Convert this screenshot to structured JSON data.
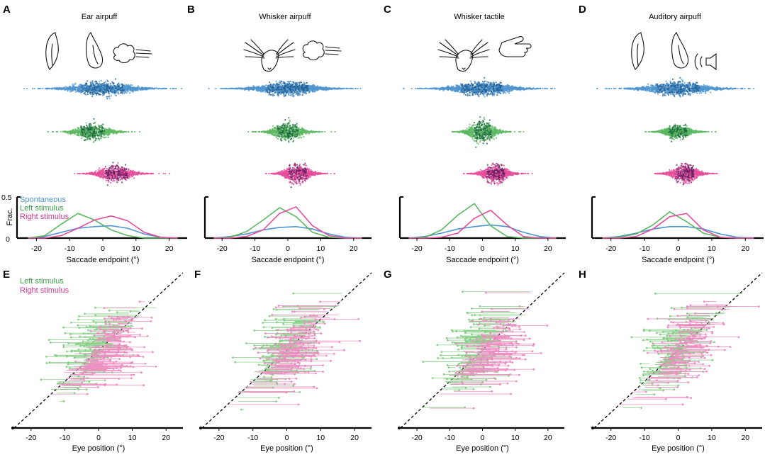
{
  "figure": {
    "panel_letters_top": [
      "A",
      "B",
      "C",
      "D"
    ],
    "panel_letters_bottom": [
      "E",
      "F",
      "G",
      "H"
    ],
    "titles": [
      "Ear airpuff",
      "Whisker airpuff",
      "Whisker tactile",
      "Auditory airpuff"
    ],
    "xlabel_top": "Saccade endpoint (°)",
    "ylabel_top": "Frac.",
    "ytick_top": [
      "0.5",
      "0"
    ],
    "xlabel_bottom": "Eye position (°)",
    "legend_top": [
      "Spontaneous",
      "Left stimulus",
      "Right stimulus"
    ],
    "legend_bottom": [
      "Left stimulus",
      "Right stimulus"
    ],
    "xtick_labels": [
      "-20",
      "-10",
      "0",
      "10",
      "20"
    ]
  },
  "colors": {
    "spontaneous": "#4f95cf",
    "spontaneous_dark": "#1f5f96",
    "left": "#5cb862",
    "left_dark": "#16683a",
    "right": "#e54e9a",
    "right_dark": "#6e1a63",
    "left_light": "#88cf88",
    "right_light": "#ef8cc2"
  },
  "icons": [
    "ear-airpuff-icon",
    "whisker-airpuff-icon",
    "whisker-tactile-icon",
    "auditory-airpuff-icon"
  ],
  "chart_data": [
    {
      "panel": "A",
      "type": "line",
      "title": "Ear airpuff",
      "xlabel": "Saccade endpoint (°)",
      "ylabel": "Frac.",
      "xlim": [
        -25,
        25
      ],
      "ylim": [
        0,
        0.5
      ],
      "x": [
        -20,
        -15,
        -10,
        -5,
        0,
        5,
        10,
        15,
        20,
        25
      ],
      "series": [
        {
          "name": "Spontaneous",
          "values": [
            0.0,
            0.02,
            0.07,
            0.12,
            0.14,
            0.15,
            0.12,
            0.05,
            0.01,
            0.0
          ]
        },
        {
          "name": "Left stimulus",
          "values": [
            0.0,
            0.03,
            0.17,
            0.3,
            0.22,
            0.1,
            0.03,
            0.0,
            0.0,
            0.0
          ]
        },
        {
          "name": "Right stimulus",
          "values": [
            0.0,
            0.0,
            0.03,
            0.12,
            0.22,
            0.27,
            0.21,
            0.07,
            0.01,
            0.0
          ]
        }
      ]
    },
    {
      "panel": "B",
      "type": "line",
      "title": "Whisker airpuff",
      "xlabel": "Saccade endpoint (°)",
      "ylabel": "Frac.",
      "xlim": [
        -25,
        25
      ],
      "ylim": [
        0,
        0.5
      ],
      "x": [
        -20,
        -15,
        -10,
        -5,
        0,
        5,
        10,
        15,
        20,
        25
      ],
      "series": [
        {
          "name": "Spontaneous",
          "values": [
            0.0,
            0.02,
            0.05,
            0.1,
            0.13,
            0.14,
            0.11,
            0.05,
            0.01,
            0.0
          ]
        },
        {
          "name": "Left stimulus",
          "values": [
            0.0,
            0.01,
            0.08,
            0.22,
            0.37,
            0.26,
            0.07,
            0.01,
            0.0,
            0.0
          ]
        },
        {
          "name": "Right stimulus",
          "values": [
            0.0,
            0.0,
            0.02,
            0.1,
            0.3,
            0.38,
            0.15,
            0.03,
            0.0,
            0.0
          ]
        }
      ]
    },
    {
      "panel": "C",
      "type": "line",
      "title": "Whisker tactile",
      "xlabel": "Saccade endpoint (°)",
      "ylabel": "",
      "xlim": [
        -25,
        25
      ],
      "ylim": [
        0,
        0.5
      ],
      "x": [
        -20,
        -15,
        -10,
        -5,
        0,
        5,
        10,
        15,
        20,
        25
      ],
      "series": [
        {
          "name": "Spontaneous",
          "values": [
            0.0,
            0.02,
            0.06,
            0.11,
            0.14,
            0.16,
            0.14,
            0.07,
            0.02,
            0.0
          ]
        },
        {
          "name": "Left stimulus",
          "values": [
            0.0,
            0.01,
            0.1,
            0.28,
            0.42,
            0.15,
            0.02,
            0.0,
            0.0,
            0.0
          ]
        },
        {
          "name": "Right stimulus",
          "values": [
            0.0,
            0.0,
            0.01,
            0.06,
            0.24,
            0.34,
            0.16,
            0.02,
            0.0,
            0.0
          ]
        }
      ]
    },
    {
      "panel": "D",
      "type": "line",
      "title": "Auditory airpuff",
      "xlabel": "Saccade endpoint (°)",
      "ylabel": "",
      "xlim": [
        -25,
        25
      ],
      "ylim": [
        0,
        0.5
      ],
      "x": [
        -20,
        -15,
        -10,
        -5,
        0,
        5,
        10,
        15,
        20,
        25
      ],
      "series": [
        {
          "name": "Spontaneous",
          "values": [
            0.0,
            0.02,
            0.06,
            0.11,
            0.14,
            0.14,
            0.11,
            0.05,
            0.01,
            0.0
          ]
        },
        {
          "name": "Left stimulus",
          "values": [
            0.0,
            0.01,
            0.05,
            0.16,
            0.32,
            0.2,
            0.06,
            0.01,
            0.0,
            0.0
          ]
        },
        {
          "name": "Right stimulus",
          "values": [
            0.0,
            0.0,
            0.02,
            0.11,
            0.26,
            0.3,
            0.1,
            0.01,
            0.0,
            0.0
          ]
        }
      ]
    },
    {
      "panel": "A-D strip plots",
      "type": "scatter",
      "xlabel": "Saccade endpoint (°)",
      "xlim": [
        -25,
        25
      ],
      "rows": [
        {
          "name": "Spontaneous",
          "spread_sd": [
            8,
            8,
            8,
            8
          ]
        },
        {
          "name": "Left stimulus",
          "spread_sd": [
            4.5,
            4,
            3.5,
            3.5
          ]
        },
        {
          "name": "Right stimulus",
          "spread_sd": [
            4.5,
            3.5,
            3.5,
            3.5
          ]
        }
      ]
    },
    {
      "panel": "E-H",
      "type": "scatter",
      "xlabel": "Eye position (°)",
      "xlim": [
        -25,
        25
      ],
      "series": [
        {
          "name": "Left stimulus",
          "mean_endpoint": [
            -3,
            -1,
            -3,
            -2
          ]
        },
        {
          "name": "Right stimulus",
          "mean_endpoint": [
            5,
            3,
            5,
            3
          ]
        }
      ]
    }
  ]
}
